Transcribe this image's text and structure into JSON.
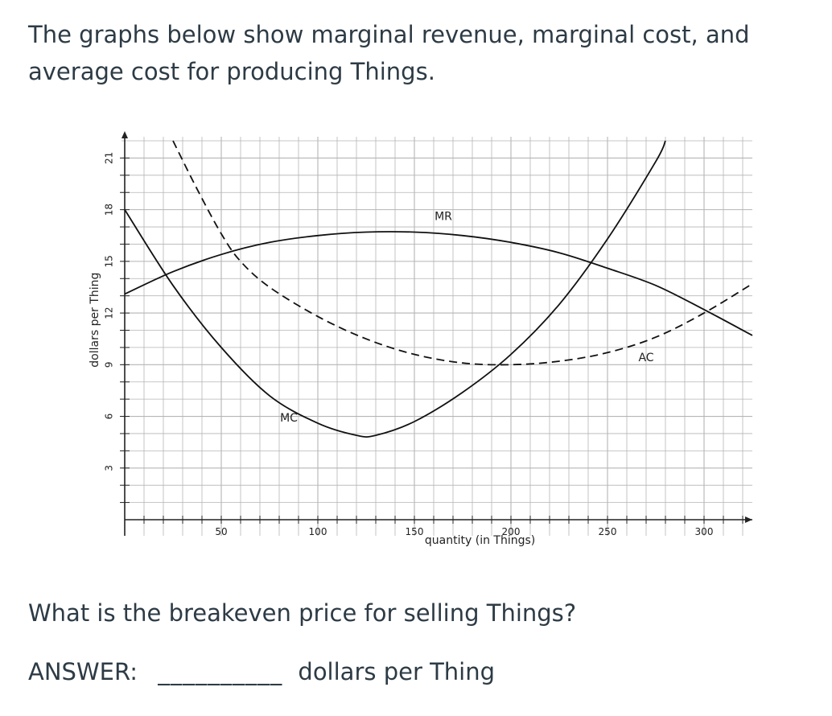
{
  "question": {
    "intro": "The graphs below show marginal revenue, marginal cost, and average cost for producing Things.",
    "prompt": "What is the breakeven price for selling Things?",
    "answer_label": "ANSWER:",
    "answer_blank": "__________",
    "answer_unit": "dollars per Thing"
  },
  "chart_data": {
    "type": "line",
    "title": "",
    "xlabel": "quantity (in Things)",
    "ylabel": "dollars per Thing",
    "xlim": [
      0,
      325
    ],
    "ylim": [
      0,
      22
    ],
    "x_ticks": [
      50,
      100,
      150,
      200,
      250,
      300
    ],
    "y_ticks": [
      3,
      6,
      9,
      12,
      15,
      18,
      21
    ],
    "grid": true,
    "legend": "none",
    "series": [
      {
        "name": "MR",
        "style": "solid",
        "x": [
          0,
          25,
          50,
          75,
          100,
          125,
          150,
          175,
          200,
          225,
          250,
          275,
          300,
          325
        ],
        "y": [
          13.1,
          14.4,
          15.4,
          16.1,
          16.5,
          16.7,
          16.7,
          16.5,
          16.1,
          15.5,
          14.6,
          13.6,
          12.2,
          10.7
        ]
      },
      {
        "name": "MC",
        "style": "solid",
        "x": [
          0,
          25,
          50,
          75,
          100,
          120,
          130,
          150,
          175,
          200,
          225,
          250,
          275,
          280
        ],
        "y": [
          18.0,
          13.6,
          10.0,
          7.2,
          5.6,
          4.9,
          4.9,
          5.7,
          7.4,
          9.6,
          12.5,
          16.3,
          20.8,
          22.0
        ]
      },
      {
        "name": "AC",
        "style": "dashed",
        "x": [
          25,
          37,
          50,
          60,
          75,
          100,
          125,
          150,
          175,
          200,
          225,
          250,
          275,
          300,
          325
        ],
        "y": [
          22.0,
          19.3,
          16.6,
          15.0,
          13.5,
          11.8,
          10.5,
          9.6,
          9.1,
          9.0,
          9.2,
          9.7,
          10.6,
          12.0,
          13.7
        ]
      }
    ],
    "annotations": [
      {
        "text": "MR",
        "x": 165,
        "y": 17.4
      },
      {
        "text": "MC",
        "x": 85,
        "y": 5.7
      },
      {
        "text": "AC",
        "x": 270,
        "y": 9.2
      }
    ]
  }
}
